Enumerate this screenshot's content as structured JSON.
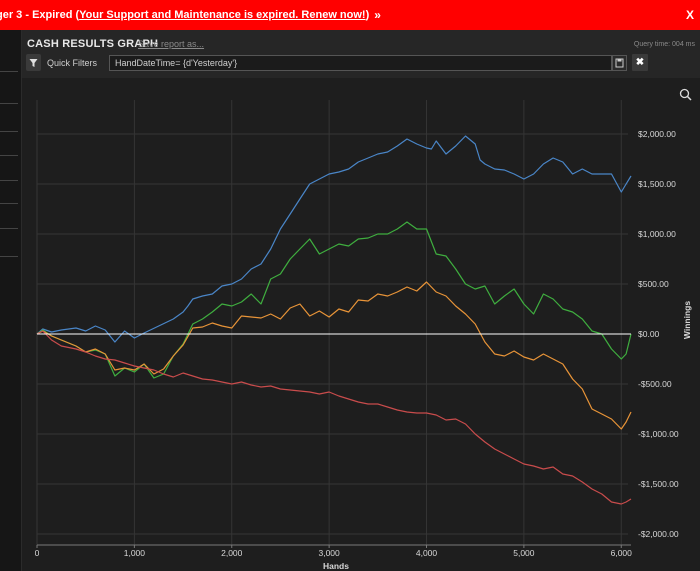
{
  "banner": {
    "text": "ger 3 - Expired (",
    "link": "Your Support and Maintenance is expired.  Renew now!",
    "after": ")",
    "chevron": "»",
    "close": "X"
  },
  "report": {
    "title": "CASH RESULTS GRAPH",
    "save_label": "Save report as...",
    "query_time": "Query time: 004 ms",
    "quick_filters": "Quick Filters",
    "filter_value": "HandDateTime= {d'Yesterday'}",
    "clear_label": "✖"
  },
  "chart_data": {
    "type": "line",
    "xlabel": "Hands",
    "ylabel": "Winnings",
    "xlim": [
      0,
      6100
    ],
    "ylim": [
      -2000,
      2000
    ],
    "x_ticks": [
      "0",
      "1,000",
      "2,000",
      "3,000",
      "4,000",
      "5,000",
      "6,000"
    ],
    "y_ticks": [
      "$2,000.00",
      "$1,500.00",
      "$1,000.00",
      "$500.00",
      "$0.00",
      "-$500.00",
      "-$1,000.00",
      "-$1,500.00",
      "-$2,000.00"
    ],
    "grid": true,
    "colors": {
      "blue": "#4a86c8",
      "green": "#3fae3f",
      "orange": "#e89438",
      "red": "#c94c4c",
      "zero": "#ffffff",
      "grid": "#353535"
    },
    "series": [
      {
        "color": "blue",
        "x": [
          0,
          60,
          150,
          250,
          400,
          500,
          600,
          700,
          800,
          900,
          1000,
          1100,
          1250,
          1400,
          1500,
          1550,
          1600,
          1700,
          1800,
          1900,
          2000,
          2100,
          2200,
          2300,
          2400,
          2500,
          2600,
          2700,
          2800,
          2900,
          3000,
          3100,
          3200,
          3300,
          3400,
          3500,
          3600,
          3700,
          3800,
          3900,
          4000,
          4050,
          4100,
          4200,
          4300,
          4400,
          4500,
          4550,
          4600,
          4700,
          4800,
          4900,
          5000,
          5100,
          5200,
          5300,
          5400,
          5500,
          5600,
          5700,
          5800,
          5900,
          6000,
          6050,
          6100
        ],
        "y": [
          0,
          50,
          20,
          40,
          60,
          30,
          80,
          40,
          -80,
          30,
          -40,
          10,
          80,
          150,
          220,
          280,
          350,
          380,
          400,
          480,
          500,
          550,
          650,
          700,
          850,
          1050,
          1200,
          1350,
          1500,
          1550,
          1600,
          1620,
          1650,
          1720,
          1760,
          1800,
          1820,
          1880,
          1950,
          1900,
          1860,
          1850,
          1930,
          1800,
          1880,
          1980,
          1900,
          1740,
          1700,
          1650,
          1640,
          1600,
          1550,
          1600,
          1700,
          1760,
          1720,
          1600,
          1650,
          1600,
          1600,
          1600,
          1420,
          1500,
          1580
        ]
      },
      {
        "color": "green",
        "x": [
          0,
          60,
          150,
          250,
          400,
          500,
          600,
          700,
          800,
          900,
          1000,
          1100,
          1200,
          1300,
          1400,
          1500,
          1600,
          1700,
          1800,
          1900,
          2000,
          2100,
          2200,
          2300,
          2400,
          2500,
          2600,
          2700,
          2800,
          2900,
          3000,
          3100,
          3200,
          3300,
          3400,
          3500,
          3600,
          3700,
          3800,
          3900,
          4000,
          4100,
          4200,
          4300,
          4400,
          4500,
          4600,
          4700,
          4800,
          4900,
          5000,
          5100,
          5200,
          5300,
          5400,
          5500,
          5600,
          5700,
          5800,
          5900,
          6000,
          6050,
          6100
        ],
        "y": [
          0,
          40,
          -20,
          -60,
          -120,
          -180,
          -160,
          -200,
          -420,
          -340,
          -380,
          -300,
          -440,
          -400,
          -220,
          -100,
          100,
          150,
          220,
          300,
          280,
          320,
          400,
          300,
          550,
          600,
          750,
          850,
          950,
          800,
          850,
          900,
          880,
          950,
          960,
          1000,
          1000,
          1050,
          1120,
          1050,
          1050,
          800,
          780,
          650,
          500,
          450,
          480,
          300,
          380,
          450,
          300,
          200,
          400,
          350,
          250,
          220,
          150,
          30,
          0,
          -150,
          -250,
          -200,
          0
        ]
      },
      {
        "color": "orange",
        "x": [
          0,
          60,
          150,
          250,
          400,
          500,
          600,
          700,
          800,
          900,
          1000,
          1100,
          1200,
          1300,
          1400,
          1500,
          1600,
          1700,
          1800,
          1900,
          2000,
          2100,
          2200,
          2300,
          2400,
          2500,
          2600,
          2700,
          2800,
          2900,
          3000,
          3100,
          3200,
          3300,
          3400,
          3500,
          3600,
          3700,
          3800,
          3900,
          4000,
          4100,
          4200,
          4300,
          4400,
          4500,
          4600,
          4700,
          4800,
          4900,
          5000,
          5100,
          5200,
          5300,
          5400,
          5500,
          5600,
          5700,
          5800,
          5900,
          6000,
          6050,
          6100
        ],
        "y": [
          0,
          30,
          -20,
          -60,
          -120,
          -180,
          -150,
          -200,
          -360,
          -340,
          -360,
          -300,
          -400,
          -350,
          -220,
          -110,
          60,
          70,
          110,
          80,
          60,
          180,
          170,
          160,
          200,
          150,
          260,
          300,
          180,
          230,
          170,
          250,
          220,
          340,
          330,
          400,
          380,
          420,
          470,
          430,
          520,
          420,
          380,
          280,
          200,
          100,
          -80,
          -200,
          -220,
          -170,
          -230,
          -260,
          -200,
          -250,
          -300,
          -450,
          -550,
          -750,
          -800,
          -850,
          -950,
          -880,
          -780
        ]
      },
      {
        "color": "red",
        "x": [
          0,
          60,
          150,
          250,
          400,
          500,
          600,
          700,
          800,
          900,
          1000,
          1100,
          1200,
          1300,
          1400,
          1500,
          1600,
          1700,
          1800,
          1900,
          2000,
          2100,
          2200,
          2300,
          2400,
          2500,
          2600,
          2700,
          2800,
          2900,
          3000,
          3100,
          3200,
          3300,
          3400,
          3500,
          3600,
          3700,
          3800,
          3900,
          4000,
          4100,
          4200,
          4300,
          4400,
          4500,
          4600,
          4700,
          4800,
          4900,
          5000,
          5100,
          5200,
          5300,
          5400,
          5500,
          5600,
          5700,
          5800,
          5900,
          6000,
          6050,
          6100
        ],
        "y": [
          0,
          30,
          -60,
          -120,
          -150,
          -180,
          -220,
          -250,
          -260,
          -290,
          -320,
          -340,
          -360,
          -400,
          -430,
          -390,
          -420,
          -450,
          -460,
          -480,
          -500,
          -480,
          -510,
          -530,
          -520,
          -550,
          -560,
          -570,
          -580,
          -600,
          -580,
          -620,
          -650,
          -680,
          -700,
          -700,
          -730,
          -760,
          -780,
          -790,
          -790,
          -810,
          -860,
          -850,
          -900,
          -1000,
          -1080,
          -1150,
          -1200,
          -1250,
          -1300,
          -1320,
          -1350,
          -1330,
          -1400,
          -1420,
          -1480,
          -1550,
          -1600,
          -1680,
          -1700,
          -1680,
          -1650
        ]
      }
    ]
  }
}
